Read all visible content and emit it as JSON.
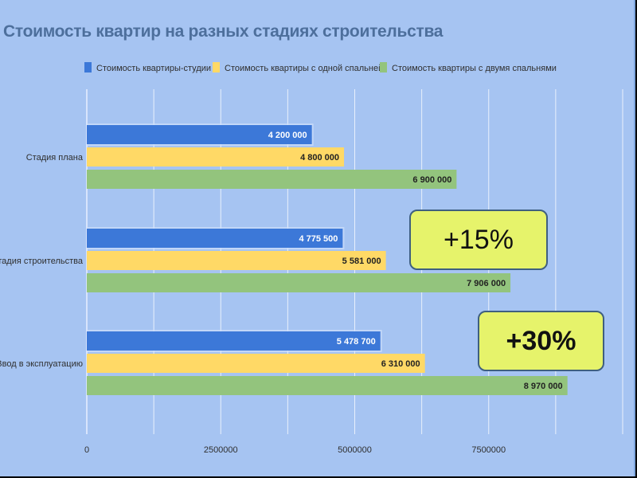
{
  "chart_data": {
    "type": "bar",
    "orientation": "horizontal",
    "title": "Стоимость квартир на разных стадиях строительства",
    "categories": [
      "Стадия плана",
      "Стадия строительства",
      "Ввод в эксплуатацию"
    ],
    "series": [
      {
        "name": "Стоимость квартиры-студии",
        "color": "#3c78d8",
        "values": [
          4200000,
          4775500,
          5478700
        ],
        "labels": [
          "4 200 000",
          "4 775 500",
          "5 478 700"
        ]
      },
      {
        "name": "Стоимость квартиры с одной спальней",
        "color": "#ffd966",
        "values": [
          4800000,
          5581000,
          6310000
        ],
        "labels": [
          "4 800 000",
          "5 581 000",
          "6 310 000"
        ]
      },
      {
        "name": "Стоимость квартиры с двумя спальнями",
        "color": "#93c47d",
        "values": [
          6900000,
          7906000,
          8970000
        ],
        "labels": [
          "6 900 000",
          "7 906 000",
          "8 970 000"
        ]
      }
    ],
    "xlim": [
      0,
      10000000
    ],
    "xticks": [
      0,
      2500000,
      5000000,
      7500000
    ],
    "xtick_labels": [
      "0",
      "2500000",
      "5000000",
      "7500000"
    ],
    "grid": true,
    "legend_position": "top"
  },
  "annotations": [
    {
      "text": "+15%",
      "fill": "#e6f36b"
    },
    {
      "text": "+30%",
      "fill": "#e6f36b"
    }
  ],
  "colors": {
    "background": "#a6c4f2",
    "grid": "#ffffff",
    "axis_text": "#2f2f2f",
    "title": "#4d6f9c"
  }
}
